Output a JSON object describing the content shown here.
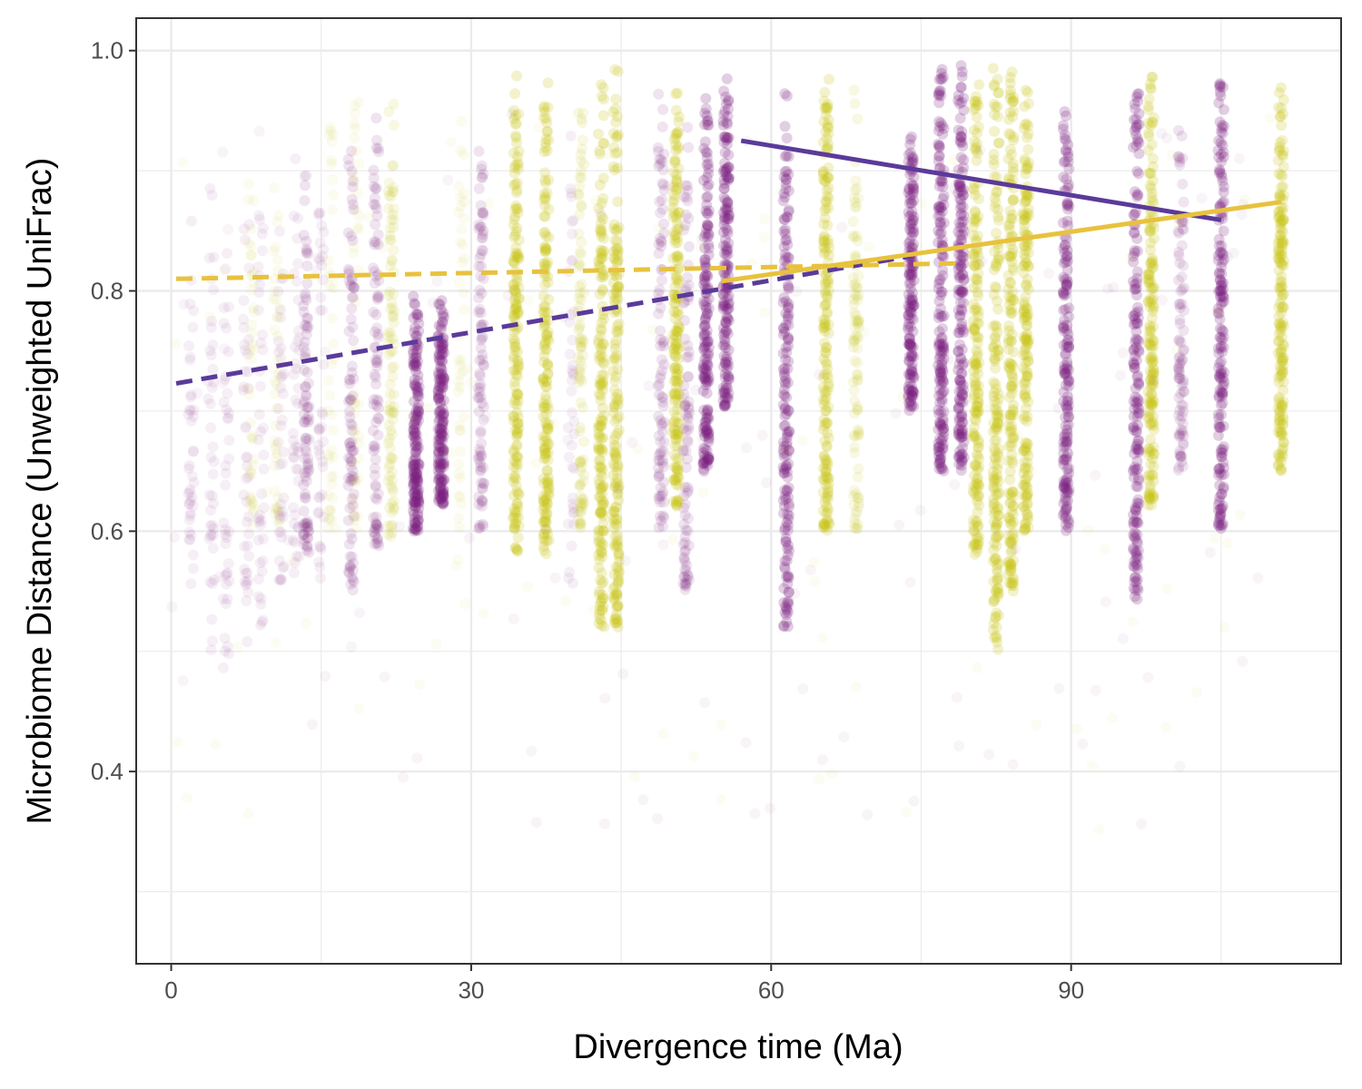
{
  "chart_data": {
    "type": "scatter",
    "title": "",
    "xlabel": "Divergence time (Ma)",
    "ylabel": "Microbiome Distance (Unweighted UniFrac)",
    "xlim": [
      -3.5,
      117
    ],
    "ylim": [
      0.24,
      1.027
    ],
    "x_ticks": [
      0,
      30,
      60,
      90
    ],
    "x_tick_labels": [
      "0",
      "30",
      "60",
      "90"
    ],
    "y_ticks": [
      0.4,
      0.6,
      0.8,
      1.0
    ],
    "y_tick_labels": [
      "0.4",
      "0.6",
      "0.8",
      "1.0"
    ],
    "grid": true,
    "legend": "none",
    "colors": {
      "purple_points": "#7a1f7f",
      "yellow_points": "#c8c416",
      "purple_line": "#5b3a9a",
      "yellow_line": "#e8c23e",
      "grid": "#ebebeb",
      "panel_border": "#333333"
    },
    "series": [
      {
        "color_key": "purple",
        "point_columns": [
          {
            "x": 2,
            "ymin": 0.55,
            "ymax": 0.88,
            "density": "low"
          },
          {
            "x": 4,
            "ymin": 0.5,
            "ymax": 0.9,
            "density": "low"
          },
          {
            "x": 5.5,
            "ymin": 0.48,
            "ymax": 0.86,
            "density": "low"
          },
          {
            "x": 7.5,
            "ymin": 0.5,
            "ymax": 0.9,
            "density": "low"
          },
          {
            "x": 9,
            "ymin": 0.52,
            "ymax": 0.88,
            "density": "low"
          },
          {
            "x": 11,
            "ymin": 0.55,
            "ymax": 0.9,
            "density": "low"
          },
          {
            "x": 12.5,
            "ymin": 0.55,
            "ymax": 0.92,
            "density": "low"
          },
          {
            "x": 13.5,
            "ymin": 0.58,
            "ymax": 0.9,
            "density": "mid"
          },
          {
            "x": 15,
            "ymin": 0.55,
            "ymax": 0.88,
            "density": "low"
          },
          {
            "x": 18,
            "ymin": 0.55,
            "ymax": 0.93,
            "density": "mid"
          },
          {
            "x": 20.5,
            "ymin": 0.58,
            "ymax": 0.95,
            "density": "mid"
          },
          {
            "x": 24.5,
            "ymin": 0.6,
            "ymax": 0.8,
            "density": "high"
          },
          {
            "x": 27,
            "ymin": 0.62,
            "ymax": 0.8,
            "density": "high"
          },
          {
            "x": 31,
            "ymin": 0.6,
            "ymax": 0.92,
            "density": "mid"
          },
          {
            "x": 40,
            "ymin": 0.55,
            "ymax": 0.93,
            "density": "low"
          },
          {
            "x": 49,
            "ymin": 0.6,
            "ymax": 0.97,
            "density": "mid"
          },
          {
            "x": 51.5,
            "ymin": 0.55,
            "ymax": 0.95,
            "density": "mid"
          },
          {
            "x": 53.5,
            "ymin": 0.65,
            "ymax": 0.97,
            "density": "high"
          },
          {
            "x": 55.5,
            "ymin": 0.7,
            "ymax": 0.98,
            "density": "high"
          },
          {
            "x": 61.5,
            "ymin": 0.52,
            "ymax": 0.97,
            "density": "high"
          },
          {
            "x": 74,
            "ymin": 0.7,
            "ymax": 0.94,
            "density": "high"
          },
          {
            "x": 77,
            "ymin": 0.65,
            "ymax": 0.99,
            "density": "high"
          },
          {
            "x": 79,
            "ymin": 0.65,
            "ymax": 0.99,
            "density": "high"
          },
          {
            "x": 89.5,
            "ymin": 0.6,
            "ymax": 0.96,
            "density": "high"
          },
          {
            "x": 96.5,
            "ymin": 0.54,
            "ymax": 0.98,
            "density": "high"
          },
          {
            "x": 101,
            "ymin": 0.65,
            "ymax": 0.94,
            "density": "mid"
          },
          {
            "x": 105,
            "ymin": 0.6,
            "ymax": 0.98,
            "density": "high"
          }
        ],
        "fits": [
          {
            "x": [
              0.5,
              74
            ],
            "y": [
              0.723,
              0.829
            ],
            "linetype": "dashed"
          },
          {
            "x": [
              57,
              105
            ],
            "y": [
              0.925,
              0.859
            ],
            "linetype": "solid"
          }
        ]
      },
      {
        "color_key": "yellow",
        "point_columns": [
          {
            "x": 8,
            "ymin": 0.6,
            "ymax": 0.95,
            "density": "low"
          },
          {
            "x": 10.5,
            "ymin": 0.6,
            "ymax": 0.95,
            "density": "low"
          },
          {
            "x": 16,
            "ymin": 0.6,
            "ymax": 0.96,
            "density": "low"
          },
          {
            "x": 18.5,
            "ymin": 0.6,
            "ymax": 0.97,
            "density": "low"
          },
          {
            "x": 22,
            "ymin": 0.58,
            "ymax": 0.97,
            "density": "mid"
          },
          {
            "x": 29,
            "ymin": 0.6,
            "ymax": 0.96,
            "density": "low"
          },
          {
            "x": 34.5,
            "ymin": 0.58,
            "ymax": 0.98,
            "density": "high"
          },
          {
            "x": 37.5,
            "ymin": 0.58,
            "ymax": 0.98,
            "density": "high"
          },
          {
            "x": 41,
            "ymin": 0.6,
            "ymax": 0.97,
            "density": "mid"
          },
          {
            "x": 43,
            "ymin": 0.52,
            "ymax": 0.98,
            "density": "high"
          },
          {
            "x": 44.5,
            "ymin": 0.52,
            "ymax": 0.99,
            "density": "high"
          },
          {
            "x": 50.5,
            "ymin": 0.62,
            "ymax": 0.97,
            "density": "high"
          },
          {
            "x": 65.5,
            "ymin": 0.6,
            "ymax": 0.98,
            "density": "high"
          },
          {
            "x": 68.5,
            "ymin": 0.6,
            "ymax": 0.97,
            "density": "mid"
          },
          {
            "x": 80.5,
            "ymin": 0.58,
            "ymax": 0.98,
            "density": "high"
          },
          {
            "x": 82.5,
            "ymin": 0.5,
            "ymax": 0.99,
            "density": "high"
          },
          {
            "x": 84,
            "ymin": 0.55,
            "ymax": 0.99,
            "density": "high"
          },
          {
            "x": 85.5,
            "ymin": 0.6,
            "ymax": 0.98,
            "density": "high"
          },
          {
            "x": 98,
            "ymin": 0.62,
            "ymax": 0.98,
            "density": "high"
          },
          {
            "x": 111,
            "ymin": 0.65,
            "ymax": 0.98,
            "density": "high"
          }
        ],
        "fits": [
          {
            "x": [
              0.5,
              79
            ],
            "y": [
              0.81,
              0.823
            ],
            "linetype": "dashed"
          },
          {
            "x": [
              55,
              111
            ],
            "y": [
              0.808,
              0.874
            ],
            "linetype": "solid"
          }
        ]
      }
    ]
  }
}
